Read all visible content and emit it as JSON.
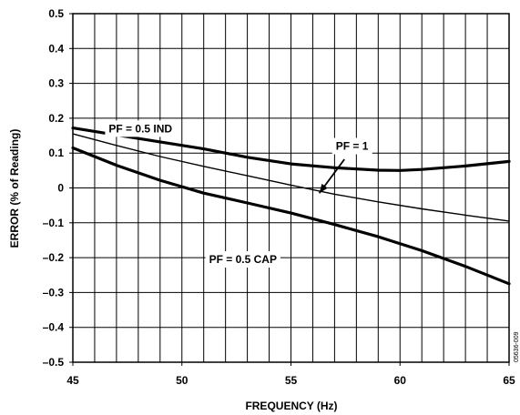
{
  "chart_data": {
    "type": "line",
    "xlabel": "FREQUENCY (Hz)",
    "ylabel": "ERROR (% of Reading)",
    "xlim": [
      45,
      65
    ],
    "ylim": [
      -0.5,
      0.5
    ],
    "x_ticks": [
      45,
      50,
      55,
      60,
      65
    ],
    "y_ticks": [
      0.5,
      0.4,
      0.3,
      0.2,
      0.1,
      0,
      -0.1,
      -0.2,
      -0.3,
      -0.4,
      -0.5
    ],
    "x_tick_labels": [
      "45",
      "50",
      "55",
      "60",
      "65"
    ],
    "y_tick_labels": [
      "0.5",
      "0.4",
      "0.3",
      "0.2",
      "0.1",
      "0",
      "–0.1",
      "–0.2",
      "–0.3",
      "–0.4",
      "–0.5"
    ],
    "grid": true,
    "series": [
      {
        "name": "PF = 0.5 IND",
        "weight": "heavy",
        "x": [
          45,
          47,
          49,
          51,
          53,
          55,
          57,
          59,
          60,
          61,
          63,
          65
        ],
        "y": [
          0.172,
          0.152,
          0.132,
          0.112,
          0.088,
          0.069,
          0.058,
          0.051,
          0.05,
          0.053,
          0.063,
          0.076
        ]
      },
      {
        "name": "PF = 1",
        "weight": "light",
        "x": [
          45,
          47,
          49,
          51,
          53,
          55,
          57,
          59,
          61,
          63,
          65
        ],
        "y": [
          0.155,
          0.122,
          0.09,
          0.062,
          0.035,
          0.008,
          -0.018,
          -0.04,
          -0.06,
          -0.078,
          -0.095
        ]
      },
      {
        "name": "PF = 0.5 CAP",
        "weight": "heavy",
        "x": [
          45,
          47,
          49,
          51,
          53,
          55,
          57,
          59,
          61,
          63,
          65
        ],
        "y": [
          0.115,
          0.065,
          0.022,
          -0.015,
          -0.043,
          -0.072,
          -0.105,
          -0.14,
          -0.18,
          -0.225,
          -0.275
        ]
      }
    ],
    "annotations": [
      {
        "text": "PF = 0.5 IND",
        "x": 48.1,
        "y": 0.17
      },
      {
        "text": "PF = 1",
        "x": 57.8,
        "y": 0.12
      },
      {
        "text": "PF = 0.5 CAP",
        "x": 52.8,
        "y": -0.205
      }
    ],
    "watermark": "05636-009",
    "colors": {
      "line": "#000000",
      "grid": "#000000"
    }
  }
}
